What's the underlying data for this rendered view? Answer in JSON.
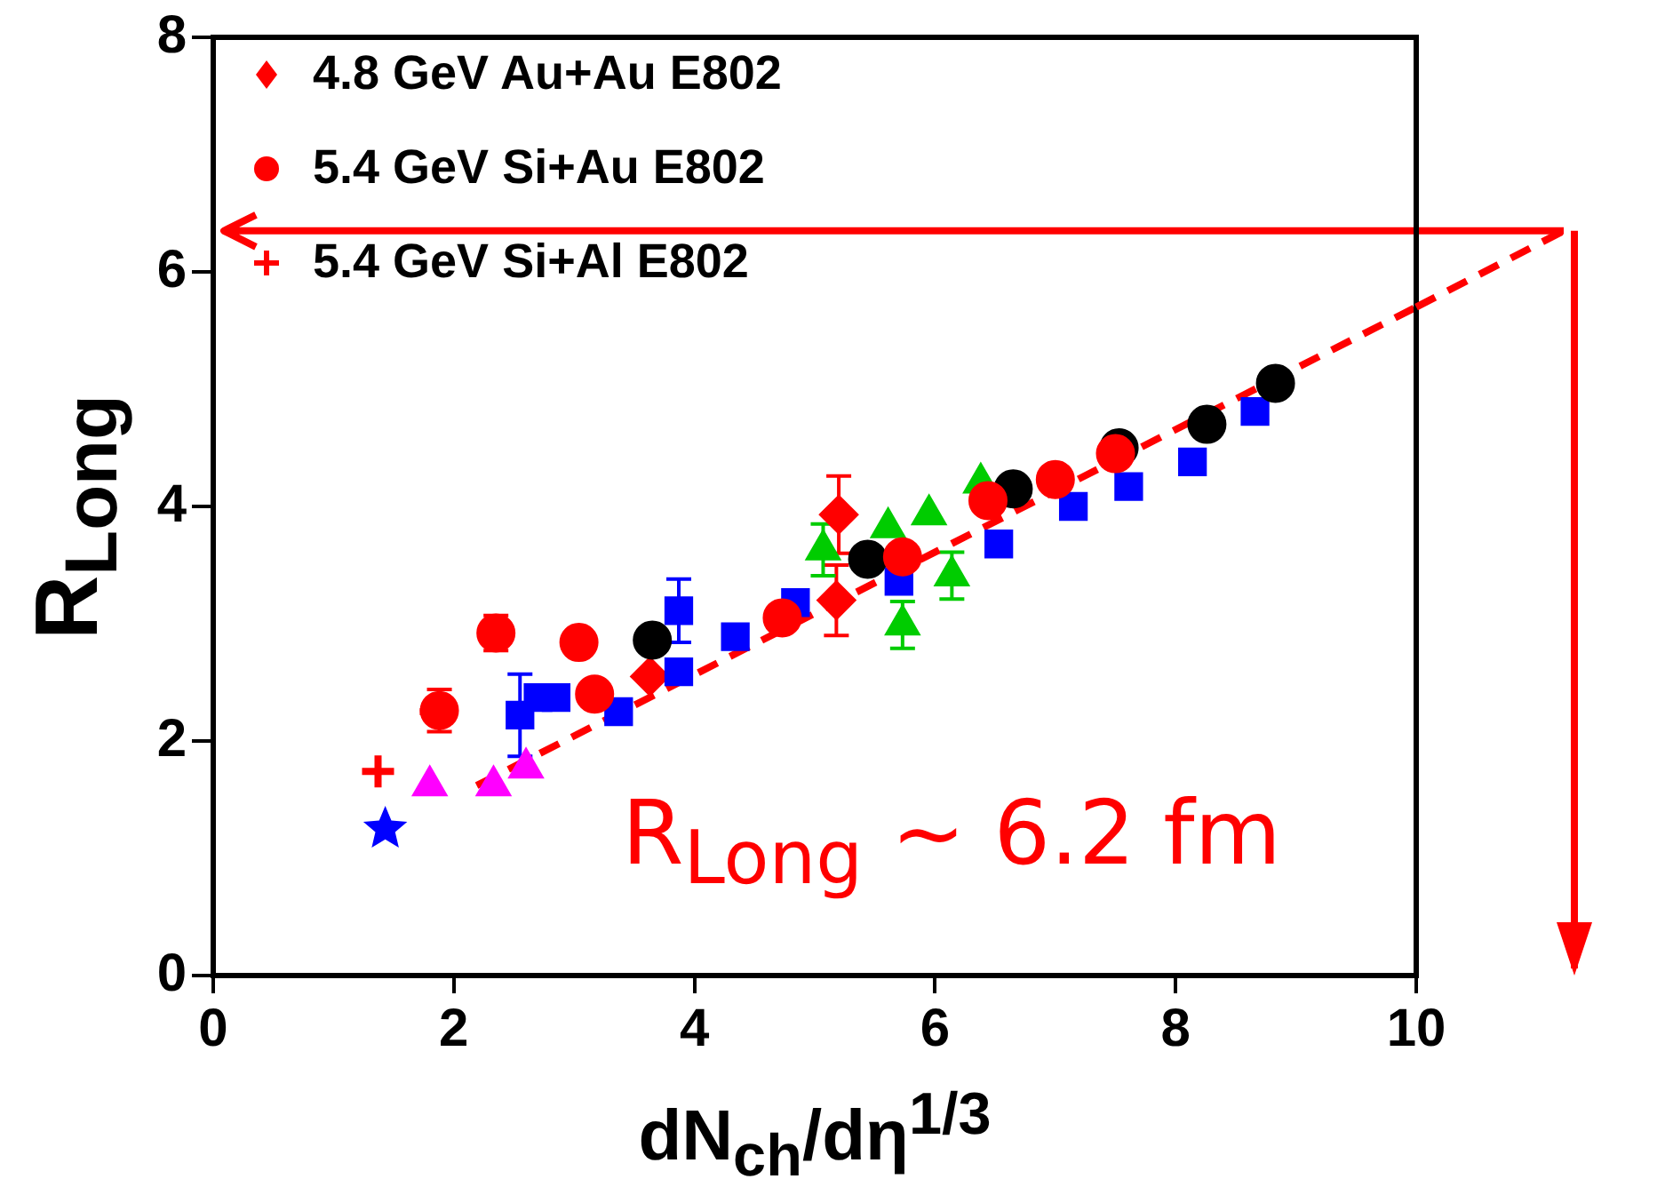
{
  "chart_data": {
    "type": "scatter",
    "xlabel": "dN$_{ch}$/dη$^{1/3}$",
    "ylabel": "R$_{Long}$",
    "xlim": [
      0,
      10
    ],
    "xticks": [
      0,
      2,
      4,
      6,
      8,
      10
    ],
    "ylim": [
      0,
      8
    ],
    "yticks": [
      0,
      2,
      4,
      6,
      8
    ],
    "grid": false,
    "legend": "top left",
    "annotations": [
      "R$_{Long}$ ~ 6.2 fm"
    ],
    "ref_lines": [
      {
        "axis": "y",
        "value": 6.35,
        "color": "#ff0000"
      }
    ],
    "series": [
      {
        "name": "4.8 GeV Au+Au E802",
        "color": "#ff0000",
        "marker": "diamond",
        "x": [
          3.63,
          5.2,
          5.18
        ],
        "values": [
          2.55,
          3.93,
          3.2
        ],
        "errors": [
          null,
          0.33,
          0.3
        ]
      },
      {
        "name": "5.4 GeV Si+Au E802",
        "color": "#ff0000",
        "marker": "circle",
        "x": [
          1.88,
          2.35,
          3.04
        ],
        "values": [
          2.26,
          2.92,
          2.84
        ],
        "errors": [
          0.18,
          0.15,
          null
        ]
      },
      {
        "name": "5.4 GeV Si+Al E802",
        "color": "#ff0000",
        "marker": "cross",
        "x": [
          1.37,
          1.85
        ],
        "values": [
          1.74,
          2.25
        ]
      },
      {
        "color": "#0000ff",
        "marker": "star",
        "x": [
          1.43
        ],
        "values": [
          1.25
        ]
      },
      {
        "color": "#ff00ff",
        "marker": "triangle",
        "x": [
          1.8,
          2.33,
          2.6
        ],
        "values": [
          1.62,
          1.62,
          1.77
        ]
      },
      {
        "color": "#0000ff",
        "marker": "square",
        "x": [
          2.7,
          2.85,
          3.37,
          3.87,
          4.34,
          4.84
        ],
        "values": [
          2.37,
          2.37,
          2.25,
          2.59,
          2.89,
          3.18
        ]
      },
      {
        "color": "#0000ff",
        "marker": "square",
        "x": [
          2.55,
          3.87,
          5.7,
          6.53,
          7.15,
          7.61,
          8.14,
          8.66
        ],
        "values": [
          2.22,
          3.11,
          3.36,
          3.68,
          4.0,
          4.17,
          4.38,
          4.81
        ],
        "errors": [
          0.35,
          0.27,
          null,
          null,
          null,
          null,
          null,
          null
        ]
      },
      {
        "color": "#00cc00",
        "marker": "triangle",
        "x": [
          5.07,
          5.73,
          6.14
        ],
        "values": [
          3.63,
          2.99,
          3.41
        ],
        "errors": [
          0.22,
          0.2,
          0.2
        ]
      },
      {
        "color": "#00cc00",
        "marker": "triangle",
        "x": [
          5.61,
          5.95,
          6.38
        ],
        "values": [
          3.82,
          3.93,
          4.2
        ]
      },
      {
        "color": "#000000",
        "marker": "circle",
        "x": [
          3.65,
          5.44,
          6.65,
          7.53,
          8.26,
          8.83
        ],
        "values": [
          2.86,
          3.55,
          4.15,
          4.5,
          4.7,
          5.05
        ]
      },
      {
        "color": "#ff0000",
        "marker": "circle",
        "x": [
          3.17,
          4.73,
          5.73,
          6.44,
          7.0,
          7.5
        ],
        "values": [
          2.4,
          3.05,
          3.57,
          4.05,
          4.23,
          4.45
        ]
      },
      {
        "type": "line",
        "color": "#ff0000",
        "line_style": "dashed",
        "marker": "none",
        "x": [
          2.19,
          10
        ],
        "values": [
          1.62,
          5.7
        ]
      }
    ]
  }
}
